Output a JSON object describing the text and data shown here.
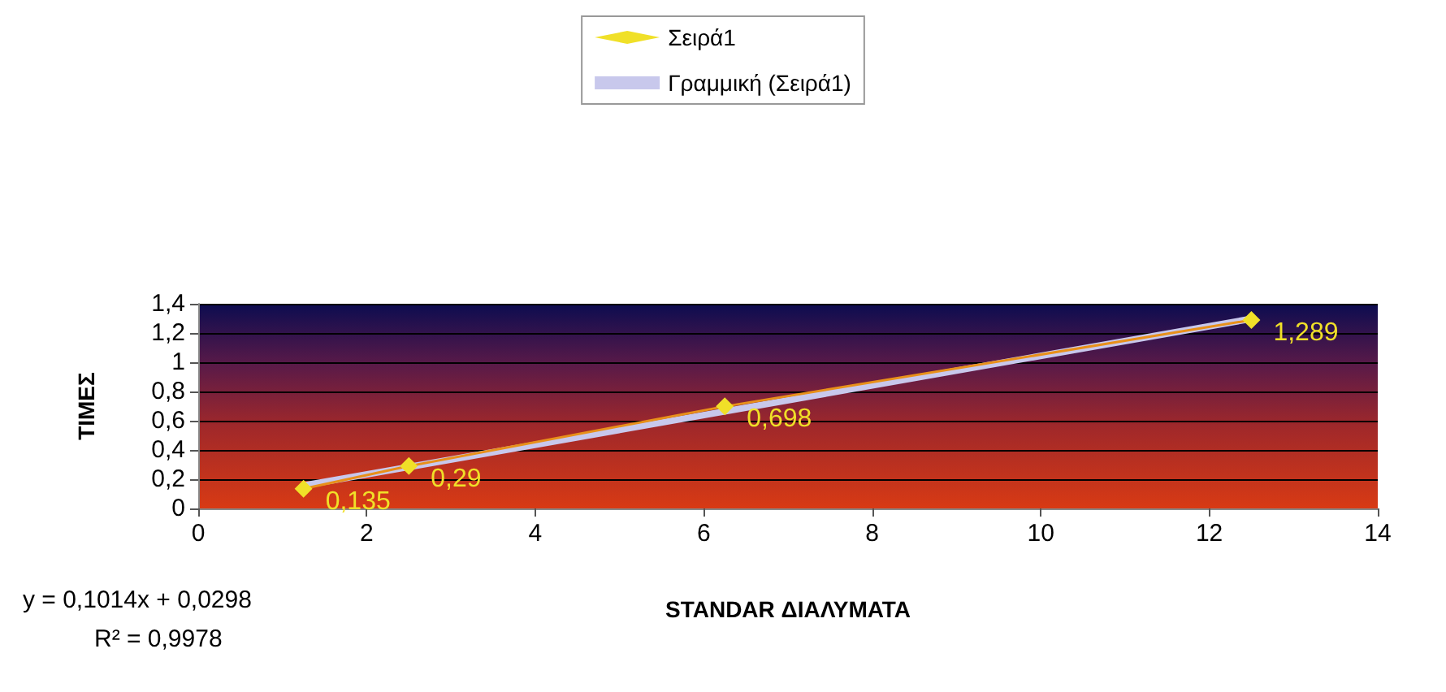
{
  "chart_data": {
    "type": "line",
    "xlabel": "STANDAR ΔΙΑΛΥΜΑΤΑ",
    "ylabel": "ΤΙΜΕΣ",
    "xlim": [
      0,
      14
    ],
    "xticks": [
      0,
      2,
      4,
      6,
      8,
      10,
      12,
      14
    ],
    "ylim": [
      0,
      1.4
    ],
    "yticks": [
      0,
      {
        "value": 0.2,
        "label": "0,2"
      },
      {
        "value": 0.4,
        "label": "0,4"
      },
      {
        "value": 0.6,
        "label": "0,6"
      },
      {
        "value": 0.8,
        "label": "0,8"
      },
      1,
      {
        "value": 1.2,
        "label": "1,2"
      },
      {
        "value": 1.4,
        "label": "1,4"
      }
    ],
    "grid": "y",
    "legend": "top",
    "marker": "diamond",
    "series": [
      {
        "name": "Σειρά1",
        "color": "#f0e028",
        "x": [
          1.25,
          2.5,
          6.25,
          12.5
        ],
        "values": [
          0.135,
          0.29,
          0.698,
          1.289
        ],
        "value_labels": [
          "0,135",
          "0,29",
          "0,698",
          "1,289"
        ],
        "line_style": "solid"
      },
      {
        "name": "Γραμμική (Σειρά1)",
        "type": "line",
        "marker": "none",
        "color": "#c8c8ec",
        "x": [
          1.25,
          12.5
        ],
        "values": [
          0.157,
          1.297
        ]
      }
    ],
    "annotations": [
      "y = 0,1014x + 0,0298",
      "R² = 0,9978"
    ]
  }
}
